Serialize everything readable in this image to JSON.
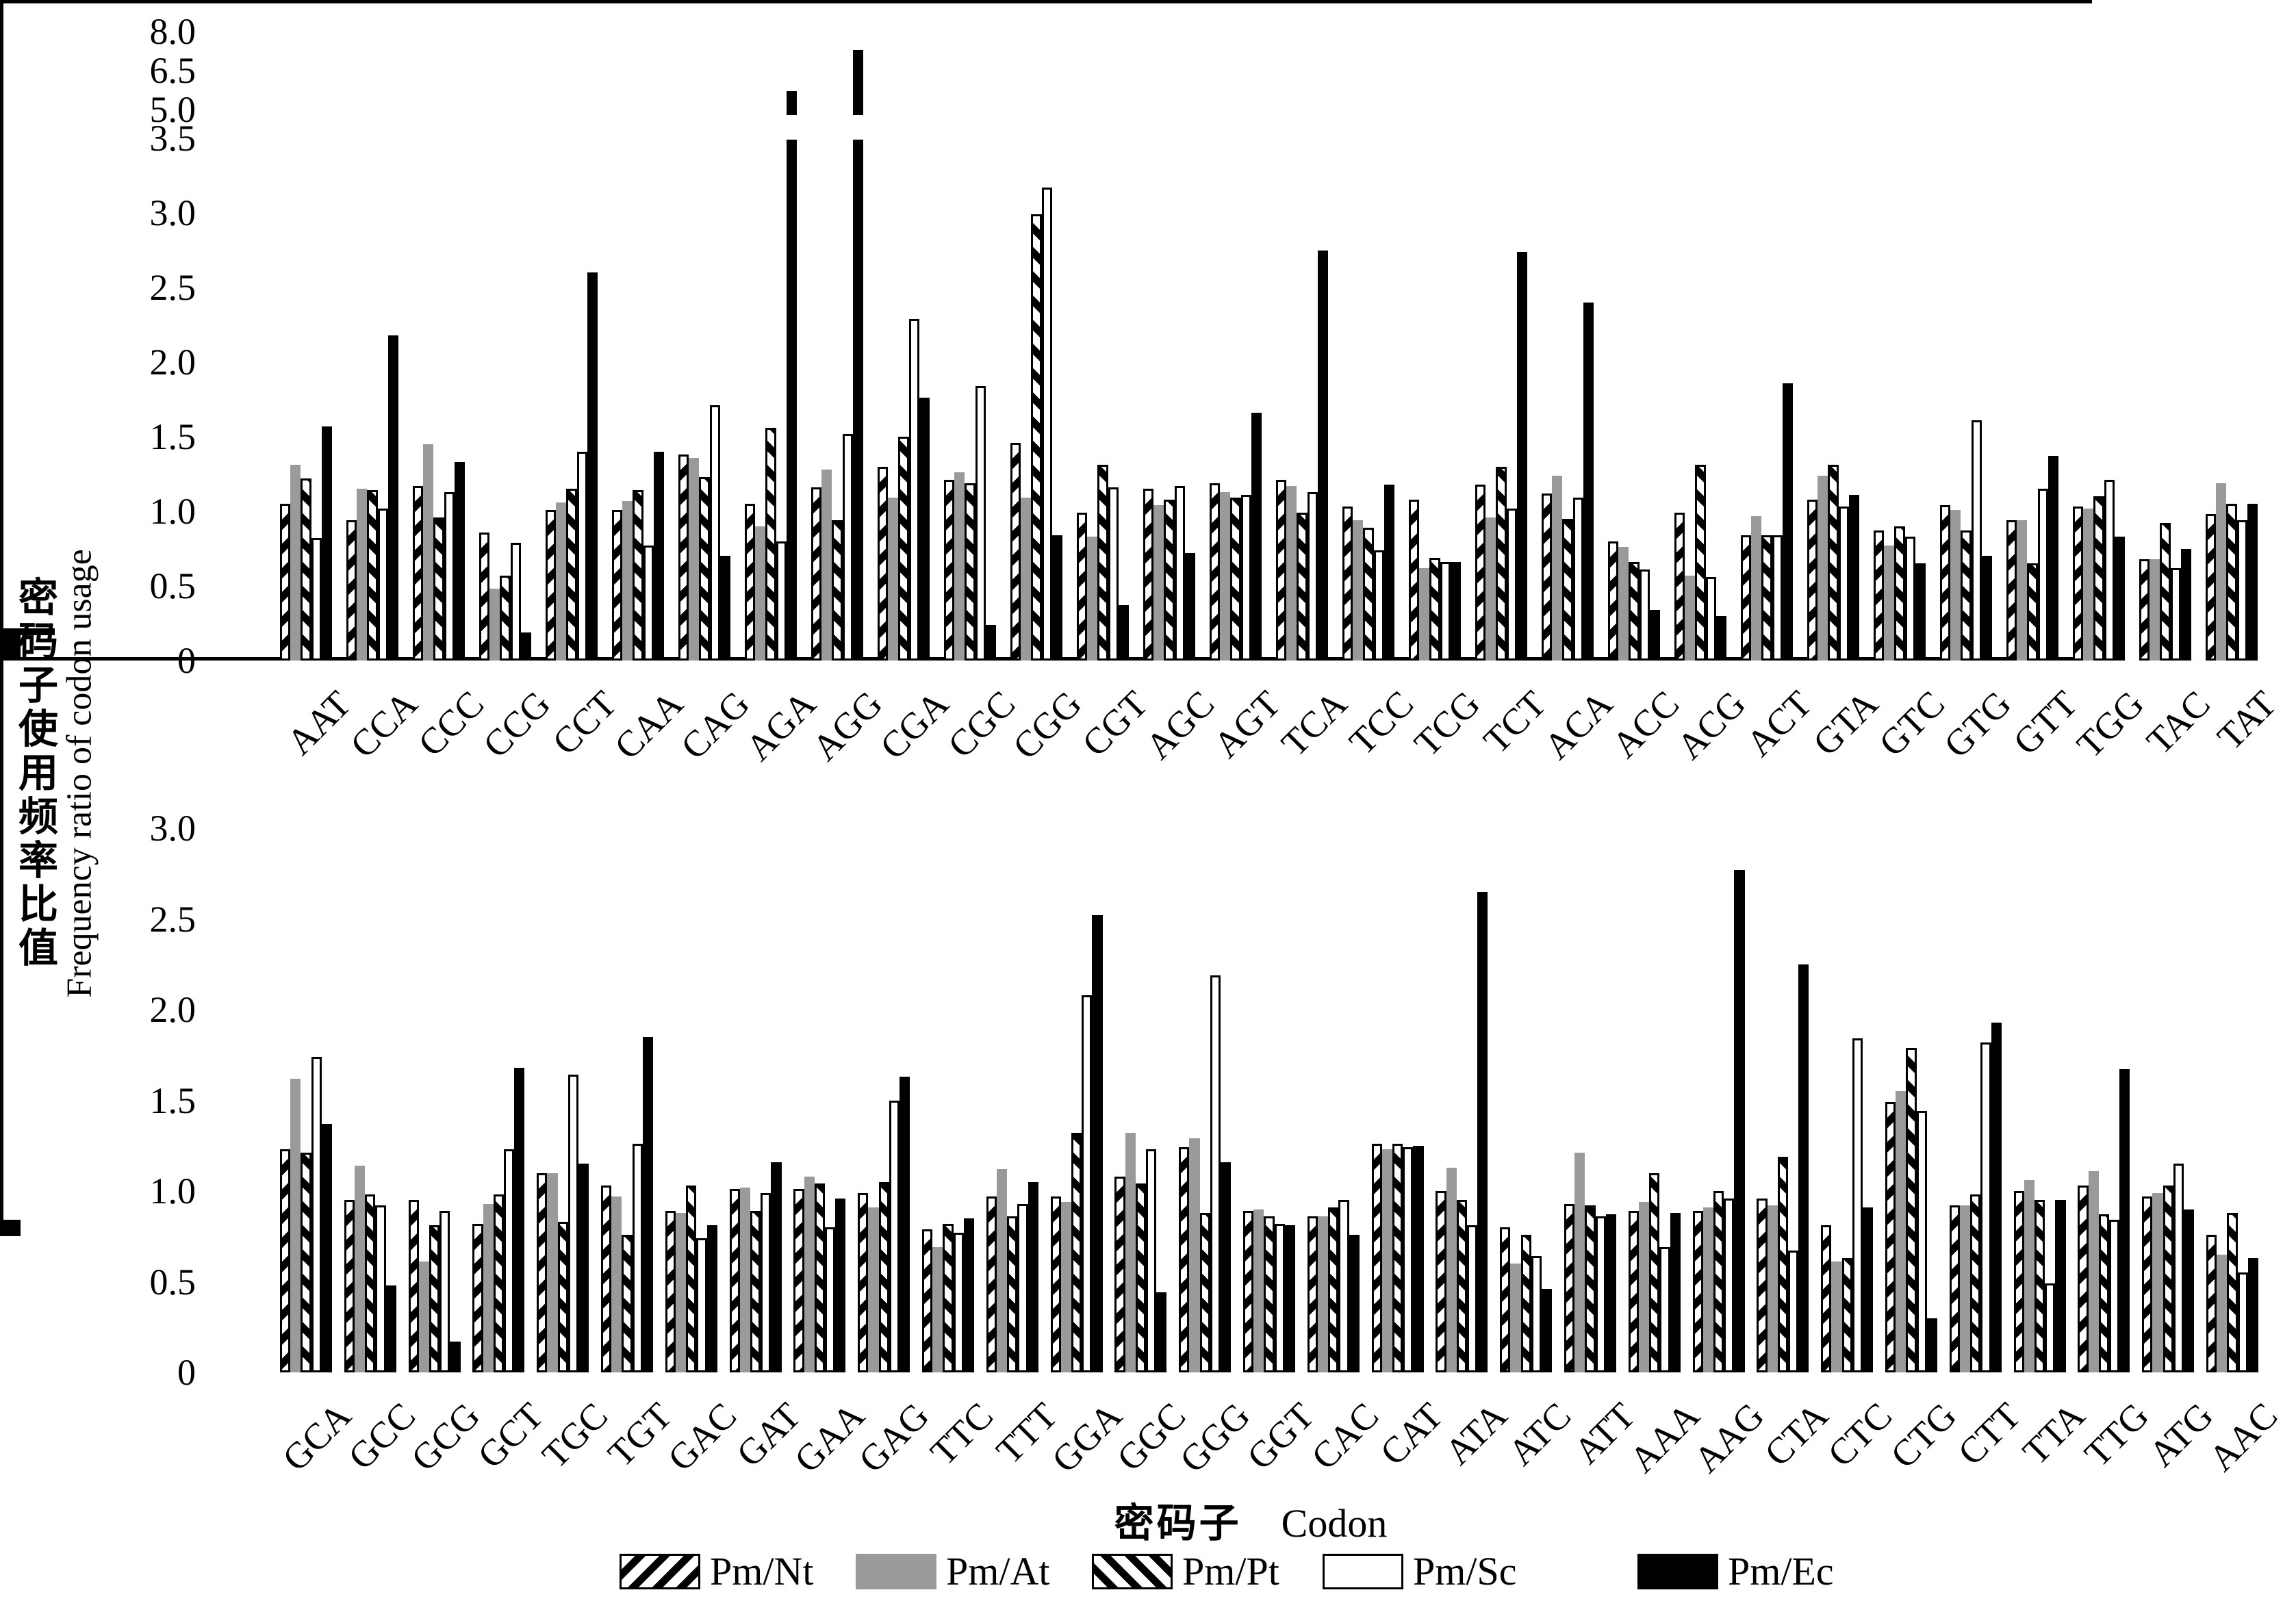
{
  "figure": {
    "y_axis_title_zh": "密码子使用频率比值",
    "y_axis_title_en": "Frequency ratio of codon usage",
    "x_axis_title_zh": "密码子",
    "x_axis_title_en": "Codon",
    "background_color": "#ffffff",
    "gray_color": "#9a9a9a",
    "black_color": "#000000"
  },
  "legend": {
    "items": [
      {
        "label": "Pm/Nt",
        "pattern": "hatch-forward"
      },
      {
        "label": "Pm/At",
        "pattern": "solid-gray"
      },
      {
        "label": "Pm/Pt",
        "pattern": "hatch-back"
      },
      {
        "label": "Pm/Sc",
        "pattern": "open"
      },
      {
        "label": "Pm/Ec",
        "pattern": "solid-black"
      }
    ]
  },
  "chart_data": [
    {
      "type": "bar",
      "panel": "top",
      "ylim": [
        0,
        8.0
      ],
      "axis_break": {
        "from": 3.5,
        "to": 5.0
      },
      "yticks_lower": [
        "0",
        "0.5",
        "1.0",
        "1.5",
        "2.0",
        "2.5",
        "3.0",
        "3.5"
      ],
      "yticks_lower_values": [
        0,
        0.5,
        1.0,
        1.5,
        2.0,
        2.5,
        3.0,
        3.5
      ],
      "yticks_upper": [
        "5.0",
        "6.5",
        "8.0"
      ],
      "yticks_upper_values": [
        5.0,
        6.5,
        8.0
      ],
      "categories": [
        "AAT",
        "CCA",
        "CCC",
        "CCG",
        "CCT",
        "CAA",
        "CAG",
        "AGA",
        "AGG",
        "CGA",
        "CGC",
        "CGG",
        "CGT",
        "AGC",
        "AGT",
        "TCA",
        "TCC",
        "TCG",
        "TCT",
        "ACA",
        "ACC",
        "ACG",
        "ACT",
        "GTA",
        "GTC",
        "GTG",
        "GTT",
        "TGG",
        "TAC",
        "TAT"
      ],
      "series": [
        {
          "name": "Pm/Nt",
          "values": [
            1.05,
            0.94,
            1.17,
            0.86,
            1.01,
            1.01,
            1.38,
            1.05,
            1.16,
            1.3,
            1.21,
            1.46,
            0.99,
            1.15,
            1.19,
            1.21,
            1.03,
            1.08,
            1.18,
            1.12,
            0.8,
            0.99,
            0.84,
            1.08,
            0.87,
            1.04,
            0.94,
            1.03,
            0.68,
            0.98
          ]
        },
        {
          "name": "Pm/At",
          "values": [
            1.31,
            1.15,
            1.45,
            0.48,
            1.06,
            1.07,
            1.36,
            0.9,
            1.28,
            1.09,
            1.26,
            1.09,
            0.83,
            1.04,
            1.13,
            1.17,
            0.94,
            0.62,
            0.96,
            1.24,
            0.76,
            0.57,
            0.97,
            1.24,
            0.77,
            1.01,
            0.94,
            1.02,
            0.68,
            1.19
          ]
        },
        {
          "name": "Pm/Pt",
          "values": [
            1.22,
            1.14,
            0.96,
            0.57,
            1.15,
            1.14,
            1.23,
            1.56,
            0.94,
            1.5,
            1.19,
            2.99,
            1.31,
            1.08,
            1.09,
            0.99,
            0.89,
            0.69,
            1.3,
            0.95,
            0.66,
            1.31,
            0.84,
            1.31,
            0.9,
            0.87,
            0.65,
            1.1,
            0.92,
            1.05
          ]
        },
        {
          "name": "Pm/Sc",
          "values": [
            0.82,
            1.02,
            1.13,
            0.79,
            1.4,
            0.77,
            1.71,
            0.8,
            1.52,
            2.29,
            1.84,
            3.17,
            1.16,
            1.17,
            1.11,
            1.13,
            0.74,
            0.66,
            1.02,
            1.09,
            0.61,
            0.56,
            0.84,
            1.03,
            0.83,
            1.61,
            1.15,
            1.21,
            0.62,
            0.94
          ]
        },
        {
          "name": "Pm/Ec",
          "values": [
            1.57,
            2.18,
            1.33,
            0.19,
            2.6,
            1.4,
            0.7,
            5.7,
            7.3,
            1.76,
            0.24,
            0.84,
            0.37,
            0.72,
            1.66,
            2.75,
            1.18,
            0.66,
            2.74,
            2.4,
            0.34,
            0.3,
            1.86,
            1.11,
            0.65,
            0.7,
            1.37,
            0.83,
            0.75,
            1.05
          ]
        }
      ]
    },
    {
      "type": "bar",
      "panel": "bottom",
      "ylim": [
        0,
        3.0
      ],
      "yticks": [
        "0",
        "0.5",
        "1.0",
        "1.5",
        "2.0",
        "2.5",
        "3.0"
      ],
      "yticks_values": [
        0,
        0.5,
        1.0,
        1.5,
        2.0,
        2.5,
        3.0
      ],
      "categories": [
        "GCA",
        "GCC",
        "GCG",
        "GCT",
        "TGC",
        "TGT",
        "GAC",
        "GAT",
        "GAA",
        "GAG",
        "TTC",
        "TTT",
        "GGA",
        "GGC",
        "GGG",
        "GGT",
        "CAC",
        "CAT",
        "ATA",
        "ATC",
        "ATT",
        "AAA",
        "AAG",
        "CTA",
        "CTC",
        "CTG",
        "CTT",
        "TTA",
        "TTG",
        "ATG",
        "AAC"
      ],
      "series": [
        {
          "name": "Pm/Nt",
          "values": [
            1.23,
            0.95,
            0.95,
            0.82,
            1.1,
            1.03,
            0.89,
            1.01,
            1.01,
            0.99,
            0.79,
            0.97,
            0.97,
            1.08,
            1.24,
            0.89,
            0.86,
            1.26,
            1.0,
            0.8,
            0.93,
            0.89,
            0.89,
            0.96,
            0.81,
            1.49,
            0.92,
            1.0,
            1.03,
            0.97,
            0.76
          ]
        },
        {
          "name": "Pm/At",
          "values": [
            1.62,
            1.14,
            0.61,
            0.93,
            1.1,
            0.97,
            0.88,
            1.02,
            1.08,
            0.91,
            0.69,
            1.12,
            0.94,
            1.32,
            1.29,
            0.9,
            0.86,
            1.23,
            1.13,
            0.6,
            1.21,
            0.94,
            0.91,
            0.92,
            0.61,
            1.55,
            0.92,
            1.06,
            1.11,
            0.99,
            0.65
          ]
        },
        {
          "name": "Pm/Pt",
          "values": [
            1.21,
            0.98,
            0.81,
            0.98,
            0.83,
            0.76,
            1.03,
            0.89,
            1.04,
            1.05,
            0.82,
            0.86,
            1.32,
            1.04,
            0.88,
            0.86,
            0.91,
            1.26,
            0.95,
            0.76,
            0.92,
            1.1,
            1.0,
            1.19,
            0.63,
            1.79,
            0.98,
            0.95,
            0.87,
            1.03,
            0.88
          ]
        },
        {
          "name": "Pm/Sc",
          "values": [
            1.74,
            0.92,
            0.89,
            1.23,
            1.64,
            1.26,
            0.74,
            0.99,
            0.8,
            1.5,
            0.77,
            0.93,
            2.08,
            1.23,
            2.19,
            0.82,
            0.95,
            1.24,
            0.81,
            0.64,
            0.86,
            0.69,
            0.96,
            0.67,
            1.84,
            1.44,
            1.82,
            0.49,
            0.84,
            1.15,
            0.55
          ]
        },
        {
          "name": "Pm/Ec",
          "values": [
            1.37,
            0.48,
            0.17,
            1.68,
            1.15,
            1.85,
            0.81,
            1.16,
            0.96,
            1.63,
            0.85,
            1.05,
            2.52,
            0.44,
            1.16,
            0.81,
            0.76,
            1.25,
            2.65,
            0.46,
            0.87,
            0.88,
            2.77,
            2.25,
            0.91,
            0.3,
            1.93,
            0.95,
            1.67,
            0.9,
            0.63
          ]
        }
      ]
    }
  ]
}
